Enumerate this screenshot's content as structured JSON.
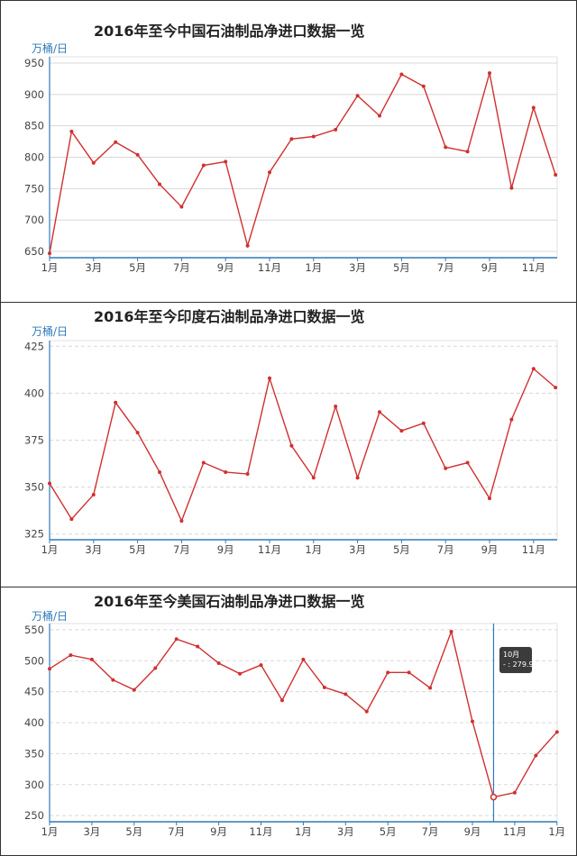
{
  "charts": [
    {
      "title": "2016年至今中国石油制品净进口数据一览",
      "unit": "万桶/日",
      "x_labels": [
        "1月",
        "3月",
        "5月",
        "7月",
        "9月",
        "11月",
        "1月",
        "3月",
        "5月",
        "7月",
        "9月",
        "11月"
      ],
      "y_ticks": [
        650,
        700,
        750,
        800,
        850,
        900,
        950
      ],
      "grid_dashed": false
    },
    {
      "title": "2016年至今印度石油制品净进口数据一览",
      "unit": "万桶/日",
      "x_labels": [
        "1月",
        "3月",
        "5月",
        "7月",
        "9月",
        "11月",
        "1月",
        "3月",
        "5月",
        "7月",
        "9月",
        "11月"
      ],
      "y_ticks": [
        325,
        350,
        375,
        400,
        425
      ],
      "grid_dashed": true
    },
    {
      "title": "2016年至今美国石油制品净进口数据一览",
      "unit": "万桶/日",
      "x_labels": [
        "1月",
        "3月",
        "5月",
        "7月",
        "9月",
        "11月",
        "1月",
        "3月",
        "5月",
        "7月",
        "9月",
        "11月",
        "1月"
      ],
      "y_ticks": [
        250,
        300,
        350,
        400,
        450,
        500,
        550
      ],
      "grid_dashed": true
    }
  ],
  "tooltip": {
    "month": "10月",
    "value_text": "- : 279.9"
  },
  "colors": {
    "line": "#d03030",
    "axis": "#2f7ab9",
    "grid": "#d8d8d8"
  },
  "chart_data": [
    {
      "type": "line",
      "title": "2016年至今中国石油制品净进口数据一览",
      "ylabel": "万桶/日",
      "ylim": [
        640,
        960
      ],
      "x": [
        "2016-01",
        "2016-02",
        "2016-03",
        "2016-04",
        "2016-05",
        "2016-06",
        "2016-07",
        "2016-08",
        "2016-09",
        "2016-10",
        "2016-11",
        "2016-12",
        "2017-01",
        "2017-02",
        "2017-03",
        "2017-04",
        "2017-05",
        "2017-06",
        "2017-07",
        "2017-08",
        "2017-09",
        "2017-10",
        "2017-11",
        "2017-12"
      ],
      "series": [
        {
          "values": [
            647,
            841,
            791,
            824,
            804,
            757,
            721,
            787,
            793,
            659,
            776,
            829,
            833,
            844,
            898,
            866,
            932,
            913,
            816,
            809,
            934,
            751,
            879,
            772
          ]
        }
      ]
    },
    {
      "type": "line",
      "title": "2016年至今印度石油制品净进口数据一览",
      "ylabel": "万桶/日",
      "ylim": [
        322,
        428
      ],
      "x": [
        "2016-01",
        "2016-02",
        "2016-03",
        "2016-04",
        "2016-05",
        "2016-06",
        "2016-07",
        "2016-08",
        "2016-09",
        "2016-10",
        "2016-11",
        "2016-12",
        "2017-01",
        "2017-02",
        "2017-03",
        "2017-04",
        "2017-05",
        "2017-06",
        "2017-07",
        "2017-08",
        "2017-09",
        "2017-10",
        "2017-11",
        "2017-12"
      ],
      "series": [
        {
          "values": [
            352,
            333,
            346,
            395,
            379,
            358,
            332,
            363,
            358,
            357,
            408,
            372,
            355,
            393,
            355,
            390,
            380,
            384,
            360,
            363,
            344,
            386,
            413,
            403
          ]
        }
      ]
    },
    {
      "type": "line",
      "title": "2016年至今美国石油制品净进口数据一览",
      "ylabel": "万桶/日",
      "ylim": [
        240,
        560
      ],
      "x": [
        "2016-01",
        "2016-02",
        "2016-03",
        "2016-04",
        "2016-05",
        "2016-06",
        "2016-07",
        "2016-08",
        "2016-09",
        "2016-10",
        "2016-11",
        "2016-12",
        "2017-01",
        "2017-02",
        "2017-03",
        "2017-04",
        "2017-05",
        "2017-06",
        "2017-07",
        "2017-08",
        "2017-09",
        "2017-10",
        "2017-11",
        "2017-12",
        "2018-01"
      ],
      "series": [
        {
          "values": [
            487,
            509,
            502,
            469,
            453,
            488,
            535,
            523,
            496,
            479,
            493,
            436,
            502,
            457,
            446,
            418,
            481,
            481,
            456,
            547,
            402,
            279.9,
            287,
            347,
            385
          ]
        }
      ]
    }
  ]
}
